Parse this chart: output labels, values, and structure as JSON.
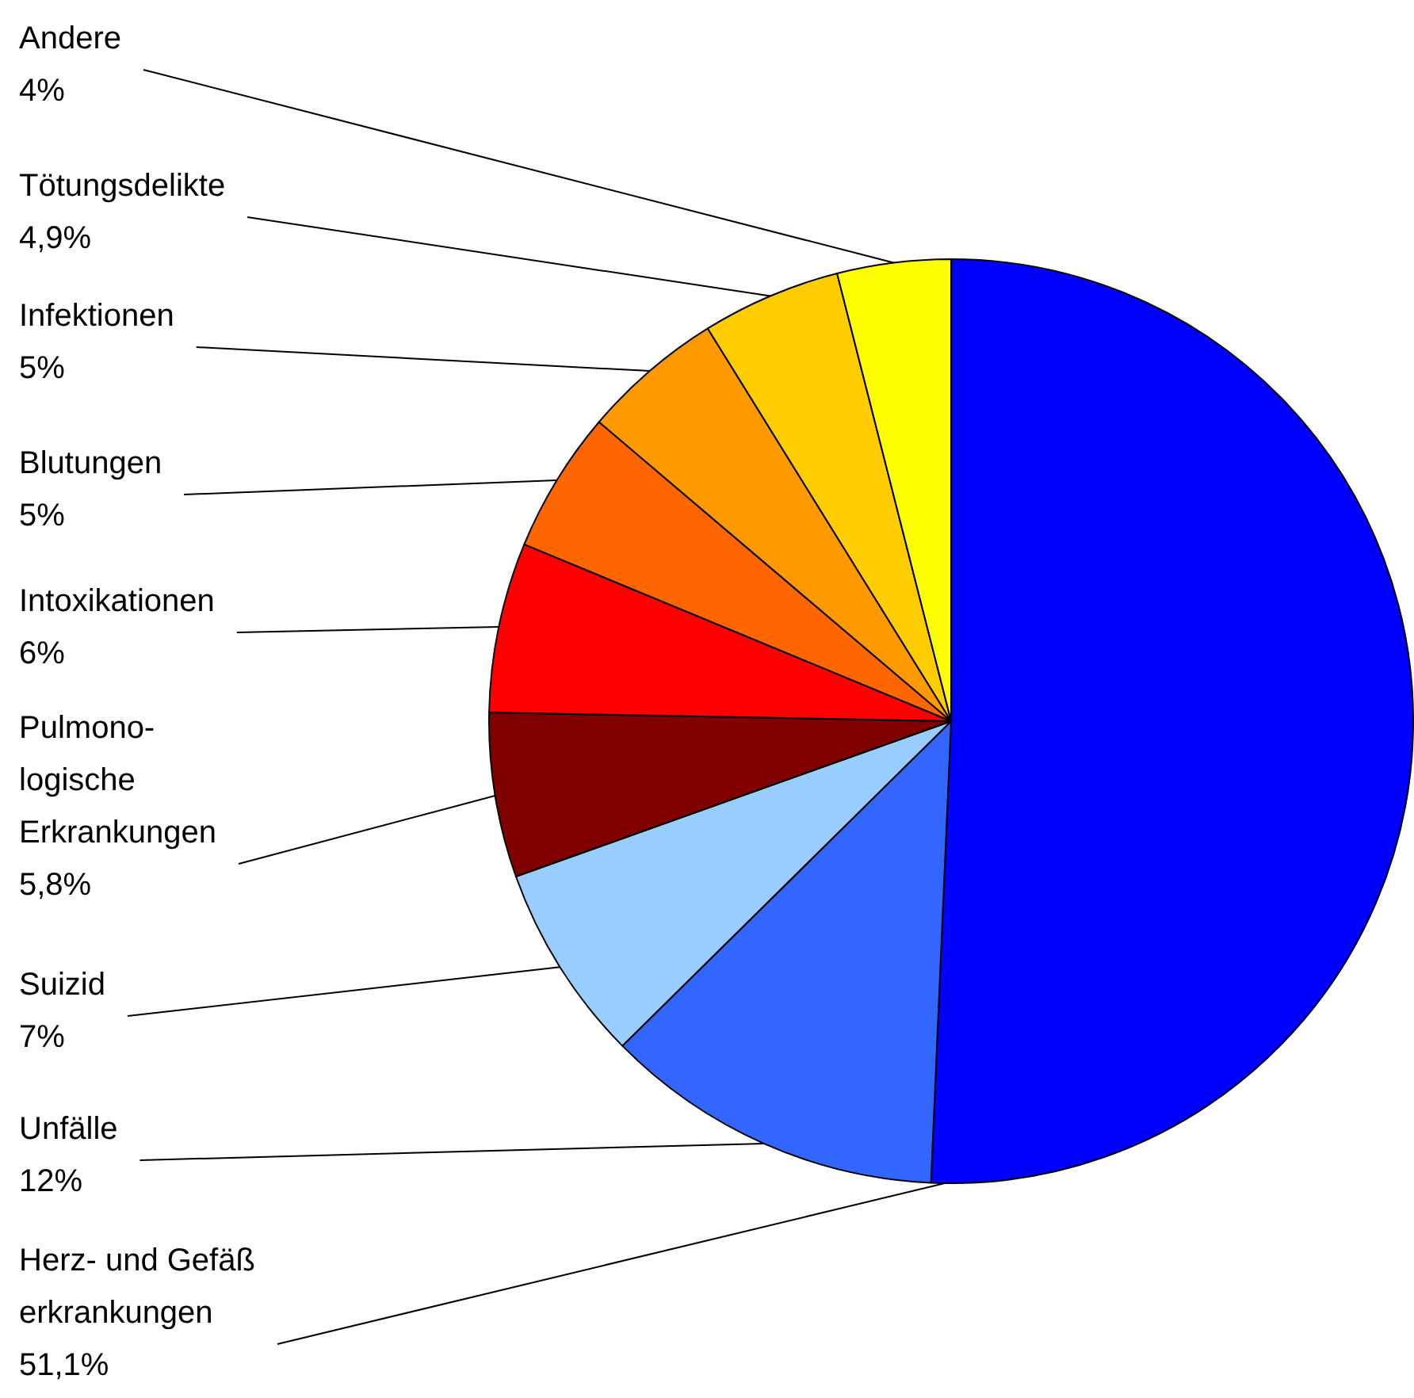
{
  "chart_data": {
    "type": "pie",
    "categories": [
      "Herz- und Gefäß\nerkrankungen",
      "Unfälle",
      "Suizid",
      "Pulmono-\nlogische\nErkrankungen",
      "Intoxikationen",
      "Blutungen",
      "Infektionen",
      "Tötungsdelikte",
      "Andere"
    ],
    "values": [
      51.1,
      12,
      7,
      5.8,
      6,
      5,
      5,
      4.9,
      4
    ],
    "value_labels": [
      "51,1%",
      "12%",
      "7%",
      "5,8%",
      "6%",
      "5%",
      "5%",
      "4,9%",
      "4%"
    ],
    "colors": [
      "#0000ff",
      "#3366ff",
      "#99ccff",
      "#800000",
      "#ff0000",
      "#ff6600",
      "#ff9900",
      "#ffcc00",
      "#ffff00"
    ]
  }
}
